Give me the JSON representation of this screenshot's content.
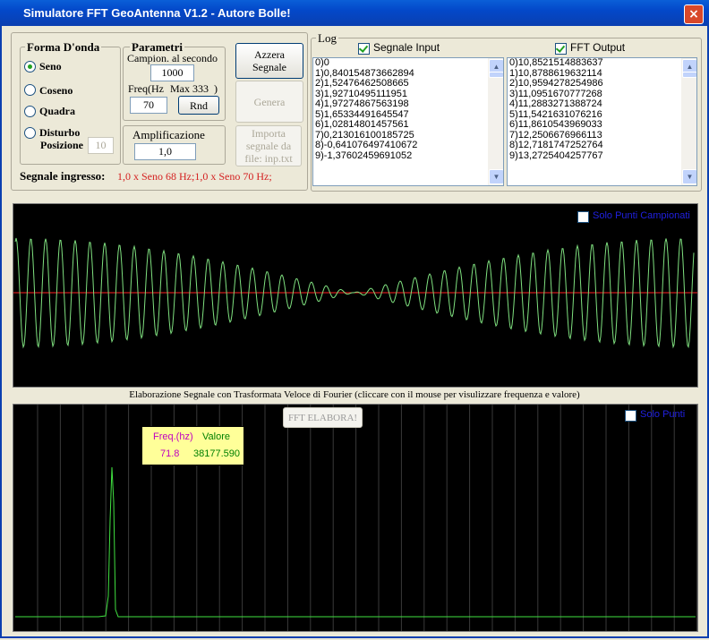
{
  "window": {
    "title": "Simulatore FFT GeoAntenna V1.2 - Autore Bolle!"
  },
  "waveform": {
    "title": "Forma D'onda",
    "options": [
      "Seno",
      "Coseno",
      "Quadra",
      "Disturbo"
    ],
    "position_label": "Posizione",
    "position_value": "10"
  },
  "parameters": {
    "title": "Parametri",
    "sample_label": "Campion. al secondo",
    "sample_value": "1000",
    "freq_label": "Freq(Hz",
    "max_label": "Max 333  )",
    "freq_value": "70",
    "rnd": "Rnd"
  },
  "amplification": {
    "title": "Amplificazione",
    "value": "1,0"
  },
  "buttons": [
    "Azzera Segnale",
    "Genera",
    "Importa segnale da file: inp.txt"
  ],
  "input_signal": {
    "label": "Segnale ingresso:",
    "value": "1,0 x Seno 68 Hz;1,0 x Seno 70 Hz;"
  },
  "log": {
    "title": "Log",
    "input_label": "Segnale Input",
    "output_label": "FFT Output",
    "input": [
      "0)0",
      "1)0,840154873662894",
      "2)1,52476462508665",
      "3)1,92710495111951",
      "4)1,97274867563198",
      "5)1,65334491645547",
      "6)1,02814801457561",
      "7)0,213016100185725",
      "8)-0,641076497410672",
      "9)-1,37602459691052"
    ],
    "output": [
      "0)10,8521514883637",
      "1)10,8788619632114",
      "2)10,9594278254986",
      "3)11,0951670777268",
      "4)11,2883271388724",
      "5)11,5421631076216",
      "6)11,8610543969033",
      "7)12,2506676966113",
      "8)12,7181747252764",
      "9)13,2725404257767"
    ]
  },
  "signal_panel": {
    "sampled_only": "Solo Punti Campionati"
  },
  "fft_panel": {
    "caption": "Elaborazione Segnale con Trasformata Veloce di Fourier (cliccare con il mouse per visulizzare frequenza e valore)",
    "button": "FFT ELABORA!",
    "only_points": "Solo Punti",
    "tooltip": {
      "freq_label": "Freq.(hz)",
      "value_label": "Valore",
      "freq": "71.8",
      "value": "38177.590"
    }
  }
}
